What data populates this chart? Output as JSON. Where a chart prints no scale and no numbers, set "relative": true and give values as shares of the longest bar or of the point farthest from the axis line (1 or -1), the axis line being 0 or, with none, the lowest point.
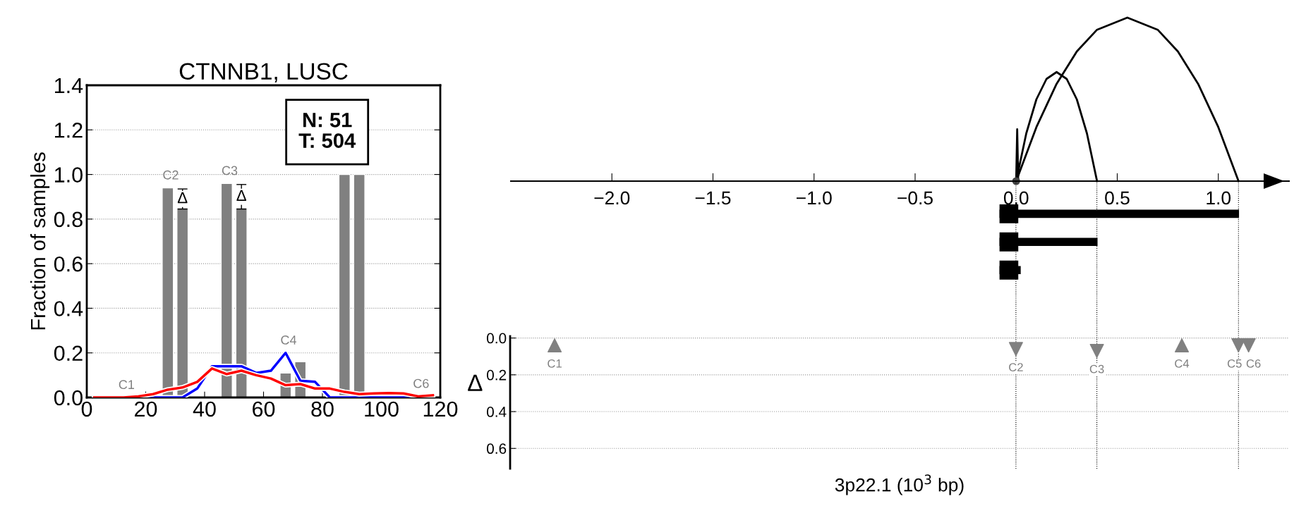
{
  "chart_data": [
    {
      "type": "bar",
      "title": "CTNNB1, LUSC",
      "ylabel": "Fraction of samples",
      "x": [
        27.5,
        32.5,
        47.5,
        52.5,
        67.5,
        72.5,
        87.5,
        92.5
      ],
      "series": [
        {
          "type": "bar",
          "color": "#808080",
          "values": [
            0.94,
            0.85,
            0.96,
            0.85,
            0.11,
            0.16,
            1.0,
            1.0
          ],
          "errors": [
            null,
            [
              0.845,
              0.935
            ],
            null,
            [
              0.845,
              0.955
            ],
            null,
            null,
            null,
            null
          ]
        },
        {
          "type": "line",
          "color": "#0000ff",
          "x": [
            17.5,
            22.5,
            27.5,
            32.5,
            37.5,
            42.5,
            47.5,
            52.5,
            57.5,
            62.5,
            67.5,
            72.5,
            77.5,
            82.5,
            87.5,
            92.5,
            97.5,
            102.5,
            107.5,
            112.5,
            117.5
          ],
          "values": [
            0,
            0,
            0,
            0,
            0.04,
            0.14,
            0.14,
            0.14,
            0.11,
            0.12,
            0.2,
            0.075,
            0.07,
            0,
            0,
            0,
            0,
            0,
            0,
            0,
            0
          ]
        },
        {
          "type": "line",
          "color": "#ff0000",
          "x": [
            2.5,
            7.5,
            12.5,
            17.5,
            22.5,
            27.5,
            32.5,
            37.5,
            42.5,
            47.5,
            52.5,
            57.5,
            62.5,
            67.5,
            72.5,
            77.5,
            82.5,
            87.5,
            92.5,
            97.5,
            102.5,
            107.5,
            112.5,
            117.5
          ],
          "values": [
            0,
            0,
            0,
            0.005,
            0.015,
            0.035,
            0.045,
            0.07,
            0.13,
            0.105,
            0.12,
            0.1,
            0.085,
            0.055,
            0.06,
            0.04,
            0.04,
            0.025,
            0.015,
            0.018,
            0.02,
            0.018,
            0.005,
            0.01
          ]
        }
      ],
      "xlim": [
        0,
        120
      ],
      "xticks": [
        0,
        20,
        40,
        60,
        80,
        100,
        120
      ],
      "ylim": [
        0,
        1.4
      ],
      "yticks": [
        {
          "value": 0,
          "label": "0.0"
        },
        {
          "value": 0.2,
          "label": "0.2"
        },
        {
          "value": 0.4,
          "label": "0.4"
        },
        {
          "value": 0.6,
          "label": "0.6"
        },
        {
          "value": 0.8,
          "label": "0.8"
        },
        {
          "value": 1.0,
          "label": "1.0"
        },
        {
          "value": 1.2,
          "label": "1.2"
        },
        {
          "value": 1.4,
          "label": "1.4"
        }
      ],
      "grid": "y",
      "annotations": [
        "N: 51\nT: 504",
        {
          "text": "Δ",
          "x": 32.5,
          "y": 0.89
        },
        {
          "text": "Δ",
          "x": 52.5,
          "y": 0.9
        },
        {
          "text": "C1",
          "x": 12.5,
          "y": 0
        },
        {
          "text": "C2",
          "x": 27.5,
          "y": 0.94
        },
        {
          "text": "C3",
          "x": 47.5,
          "y": 0.96
        },
        {
          "text": "C4",
          "x": 67.5,
          "y": 0.2
        },
        {
          "text": "C6",
          "x": 112.5,
          "y": 0.005
        }
      ]
    },
    {
      "type": "line",
      "relative": true,
      "series": [
        {
          "color": "#000000",
          "x": [
            0,
            0.1,
            0.2,
            0.3,
            0.4,
            0.55,
            0.7,
            0.8,
            0.9,
            1.0,
            1.1
          ],
          "values": [
            0,
            0.33,
            0.595,
            0.793,
            0.926,
            1,
            0.926,
            0.793,
            0.595,
            0.33,
            0
          ]
        },
        {
          "color": "#000000",
          "x": [
            0,
            0.05,
            0.1,
            0.15,
            0.2,
            0.25,
            0.3,
            0.35,
            0.4
          ],
          "values": [
            0,
            0.292,
            0.5,
            0.625,
            0.667,
            0.625,
            0.5,
            0.292,
            0
          ]
        },
        {
          "color": "#000000",
          "x": [
            0,
            0.005,
            0.01
          ],
          "values": [
            0,
            0.317,
            0
          ]
        }
      ],
      "xlim": [
        -2.5,
        1.35
      ],
      "xticks": [
        {
          "value": -2.0,
          "label": "−2.0"
        },
        {
          "value": -1.5,
          "label": "−1.5"
        },
        {
          "value": -1.0,
          "label": "−1.0"
        },
        {
          "value": -0.5,
          "label": "−0.5"
        },
        {
          "value": 0.0,
          "label": "0.0"
        },
        {
          "value": 0.5,
          "label": "0.5"
        },
        {
          "value": 1.0,
          "label": "1.0"
        }
      ]
    },
    {
      "type": "scatter",
      "ylabel": "Δ",
      "xlabel": "3p22.1 (10$^{3}$ bp)",
      "series": [
        {
          "color": "#808080",
          "marker": "triangle",
          "x": [
            -2.28,
            0.82
          ],
          "values": [
            0.04,
            0.04
          ]
        },
        {
          "color": "#808080",
          "marker": "triangle_down",
          "x": [
            0.0,
            0.4,
            1.1,
            1.15
          ],
          "values": [
            0.06,
            0.07,
            0.04,
            0.04
          ]
        }
      ],
      "xlim": [
        -2.5,
        1.35
      ],
      "ylim": [
        0.71,
        -0.01
      ],
      "yticks": [
        {
          "value": 0,
          "label": "0.0"
        },
        {
          "value": 0.2,
          "label": "0.2"
        },
        {
          "value": 0.4,
          "label": "0.4"
        },
        {
          "value": 0.6,
          "label": "0.6"
        }
      ],
      "tick_labels": "y",
      "grid": "y",
      "ref_lines": [
        {
          "axis": "x",
          "value": 0.0,
          "line_style": "dotted"
        },
        {
          "axis": "x",
          "value": 0.4,
          "line_style": "dotted"
        },
        {
          "axis": "x",
          "value": 1.1,
          "line_style": "dotted"
        }
      ],
      "annotations": [
        {
          "text": "C1",
          "x": -2.28,
          "y": 0.04
        },
        {
          "text": "C2",
          "x": 0.0,
          "y": 0.06
        },
        {
          "text": "C3",
          "x": 0.4,
          "y": 0.07
        },
        {
          "text": "C4",
          "x": 0.82,
          "y": 0.04
        },
        {
          "text": "C5",
          "x": 1.1,
          "y": 0.04
        },
        {
          "text": "C6",
          "x": 1.15,
          "y": 0.04
        }
      ]
    }
  ]
}
